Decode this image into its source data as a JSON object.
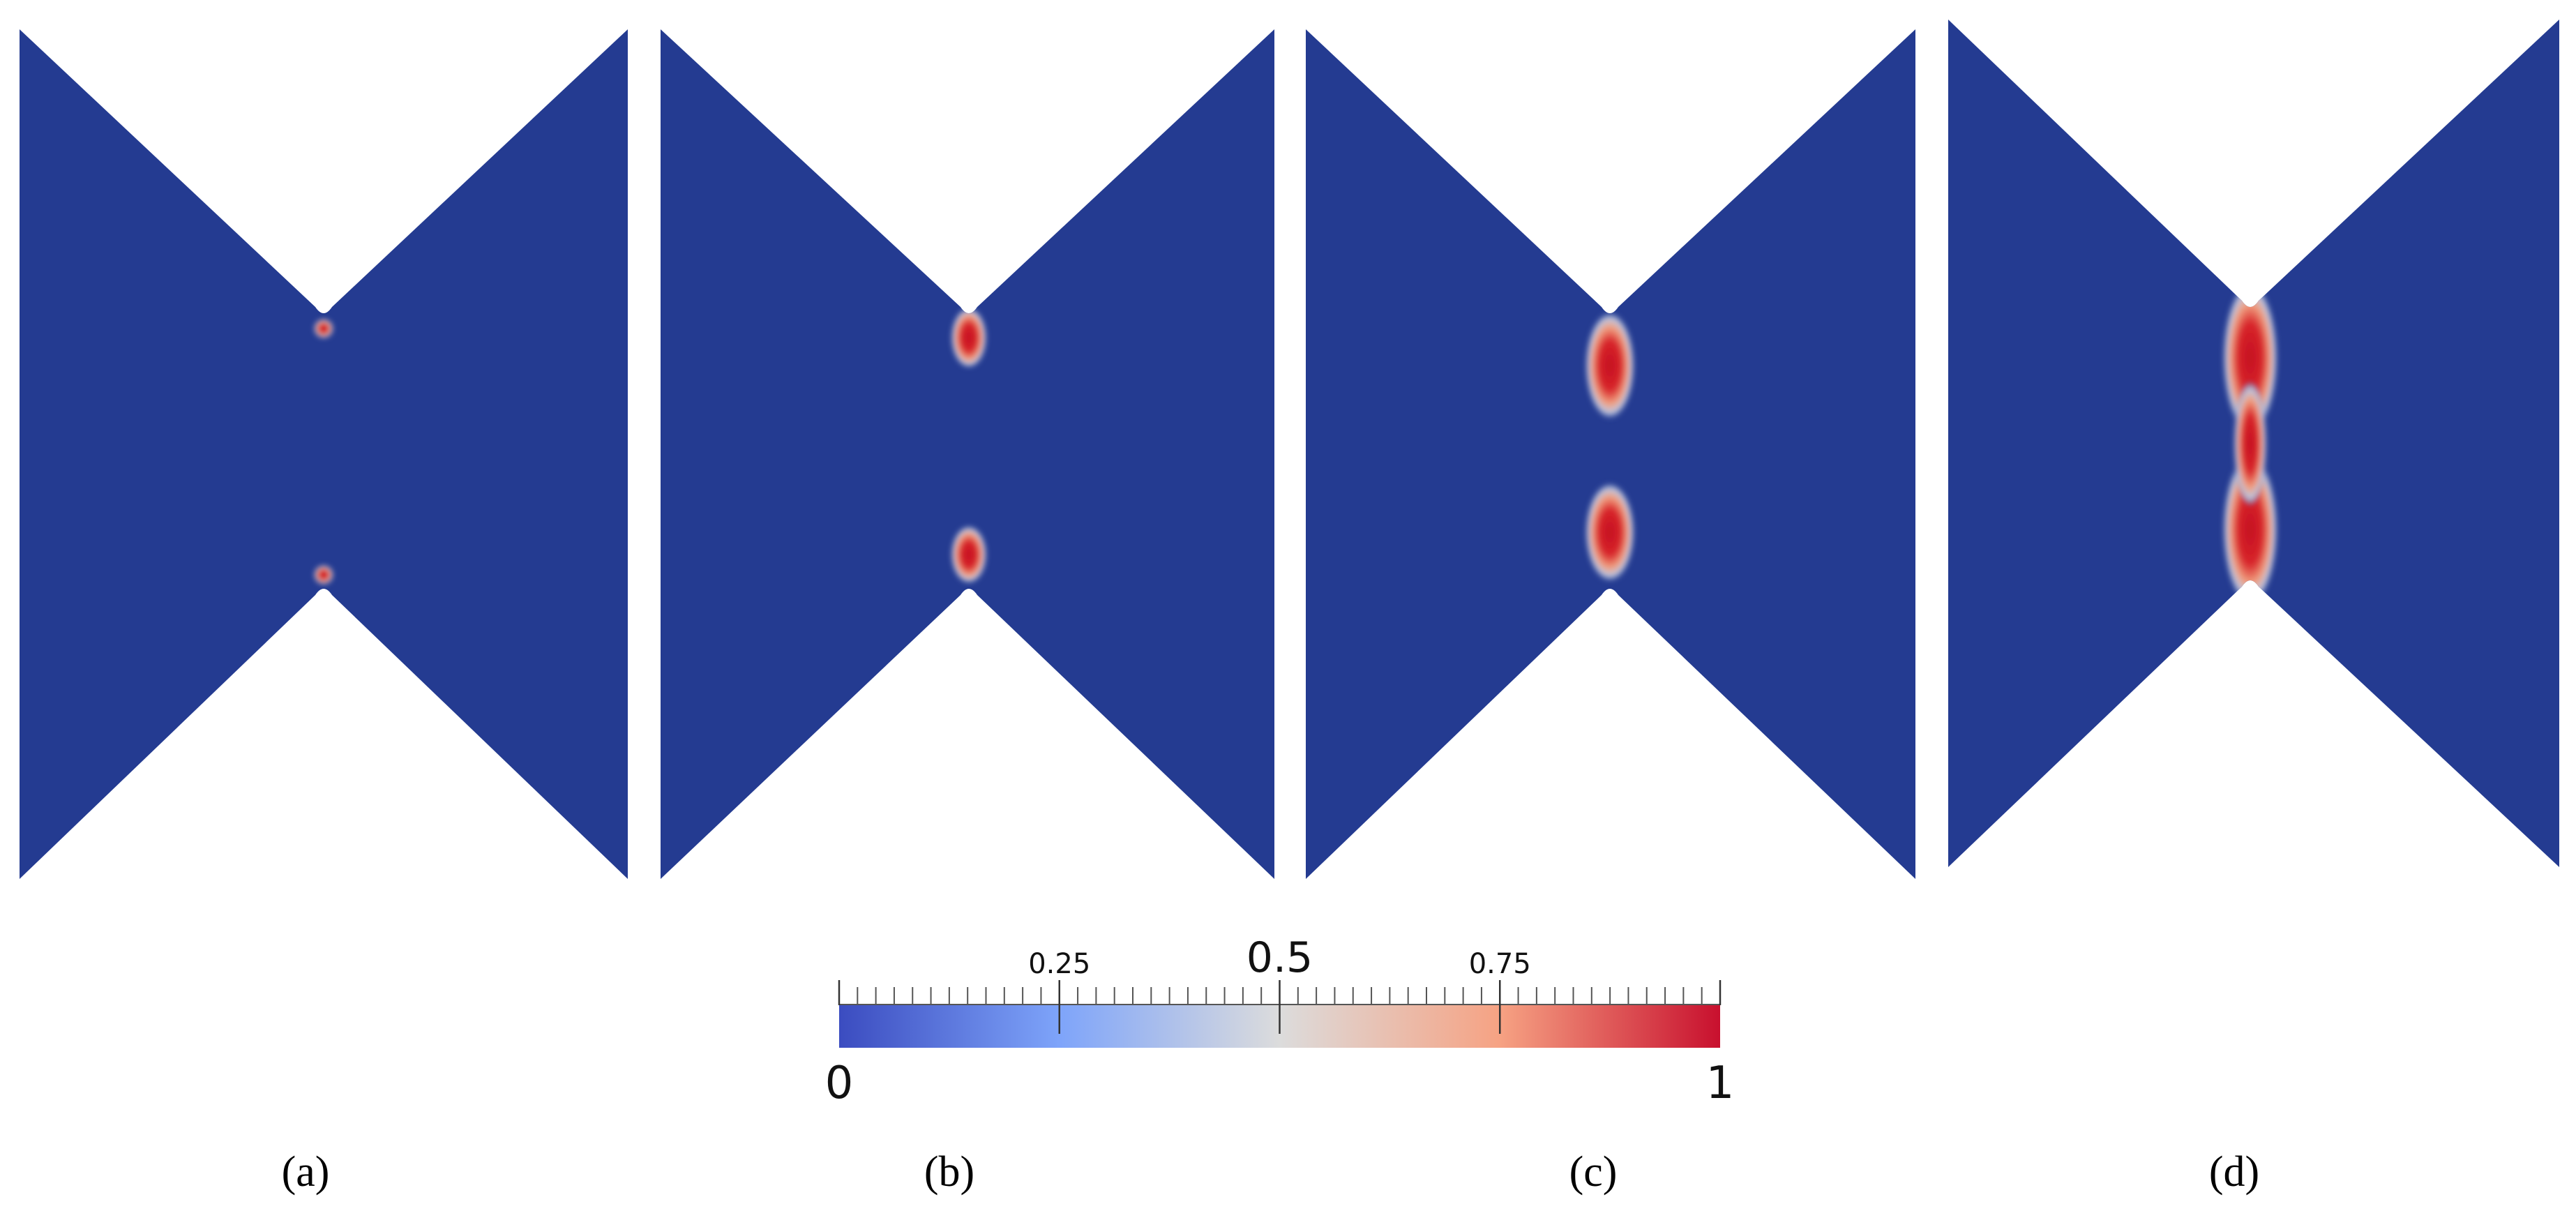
{
  "colorbar": {
    "range": [
      0,
      1
    ],
    "ticks": [
      0,
      0.25,
      0.5,
      0.75,
      1
    ]
  },
  "panels": [
    {
      "label": "(a)"
    },
    {
      "label": "(b)"
    },
    {
      "label": "(c)"
    },
    {
      "label": "(d)"
    }
  ]
}
